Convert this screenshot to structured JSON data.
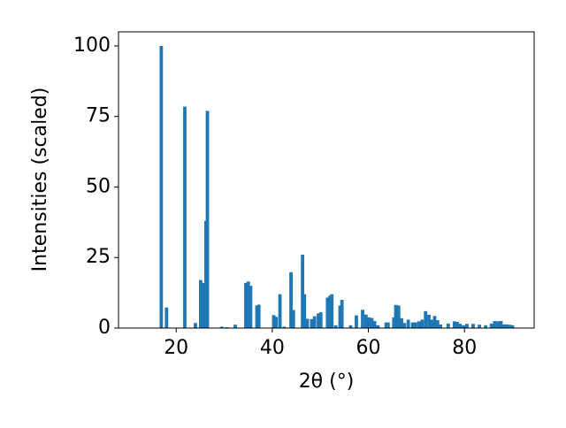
{
  "chart_data": {
    "type": "bar",
    "xlabel": "2θ (°)",
    "ylabel": "Intensities (scaled)",
    "x": [
      16.9,
      18.0,
      21.8,
      24.0,
      25.1,
      25.6,
      26.2,
      26.5,
      29.5,
      30.5,
      32.3,
      34.5,
      35.0,
      35.5,
      36.8,
      37.2,
      40.3,
      40.8,
      41.6,
      42.5,
      43.9,
      44.4,
      46.3,
      46.7,
      47.3,
      48.2,
      48.8,
      49.6,
      50.1,
      51.5,
      52.0,
      52.4,
      53.2,
      54.1,
      54.5,
      56.3,
      57.5,
      58.8,
      59.5,
      60.1,
      60.7,
      61.3,
      62.0,
      63.7,
      64.1,
      65.3,
      65.7,
      66.3,
      66.9,
      67.5,
      68.3,
      69.2,
      69.8,
      70.5,
      71.2,
      71.9,
      72.6,
      73.2,
      73.8,
      74.4,
      75.0,
      76.6,
      77.9,
      78.5,
      79.1,
      79.8,
      80.5,
      81.8,
      83.1,
      84.4,
      85.6,
      86.3,
      87.0,
      87.6,
      88.2,
      88.8,
      89.4,
      90.0
    ],
    "values": [
      100,
      7.3,
      78.5,
      1.8,
      17,
      16,
      38,
      77,
      0.5,
      0.3,
      1.2,
      16,
      16.5,
      15,
      8,
      8.3,
      4.6,
      4,
      12,
      0.5,
      19.8,
      6.4,
      26,
      12,
      3.3,
      3.2,
      4.2,
      5.2,
      5.6,
      10.8,
      11.5,
      12,
      1,
      8,
      10,
      1,
      4.5,
      6.5,
      4.8,
      3.8,
      3.6,
      2.5,
      1,
      2,
      2,
      3.8,
      8.2,
      8,
      3.5,
      1.8,
      3,
      2,
      2,
      2.4,
      3,
      6,
      4.7,
      3,
      4.3,
      2.8,
      1.3,
      1.6,
      2.4,
      2.2,
      1.5,
      1,
      1.5,
      1.5,
      1.2,
      1,
      1.6,
      2.5,
      2.4,
      2.5,
      1.3,
      1.3,
      1.2,
      1
    ],
    "color": "#1f77b4",
    "bar_width": 0.7,
    "xlim": [
      8,
      94.5
    ],
    "xticks": [
      20,
      40,
      60,
      80
    ],
    "ylim": [
      0,
      105
    ],
    "yticks": [
      0,
      25,
      50,
      75,
      100
    ],
    "grid": false
  }
}
